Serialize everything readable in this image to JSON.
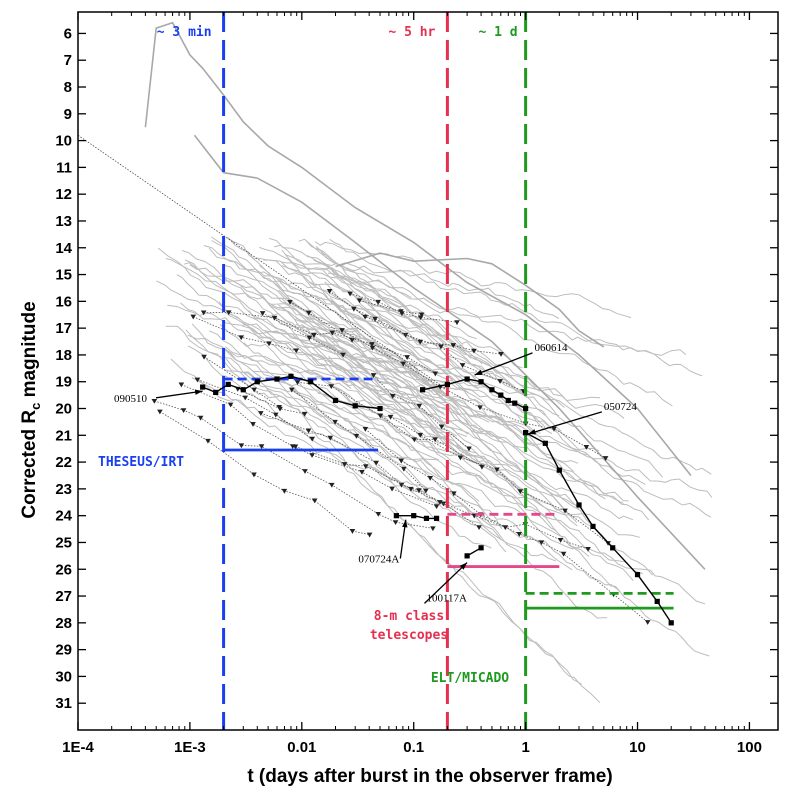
{
  "chart_data": {
    "type": "line",
    "x_scale": "log",
    "y_inverted": true,
    "xlabel": "t (days after burst in the observer frame)",
    "ylabel_main": "Corrected R",
    "ylabel_sub": "c",
    "ylabel_end": " magnitude",
    "xlim": [
      0.0001,
      180
    ],
    "ylim": [
      32,
      5.2
    ],
    "x_ticks": [
      {
        "v": 0.0001,
        "label": "1E-4"
      },
      {
        "v": 0.001,
        "label": "1E-3"
      },
      {
        "v": 0.01,
        "label": "0.01"
      },
      {
        "v": 0.1,
        "label": "0.1"
      },
      {
        "v": 1,
        "label": "1"
      },
      {
        "v": 10,
        "label": "10"
      },
      {
        "v": 100,
        "label": "100"
      }
    ],
    "y_ticks": [
      "6",
      "7",
      "8",
      "9",
      "10",
      "11",
      "12",
      "13",
      "14",
      "15",
      "16",
      "17",
      "18",
      "19",
      "20",
      "21",
      "22",
      "23",
      "24",
      "25",
      "26",
      "27",
      "28",
      "29",
      "30",
      "31"
    ],
    "epoch_lines": [
      {
        "x": 0.002,
        "label": "~ 3 min",
        "color": "#1a3ff0"
      },
      {
        "x": 0.2,
        "label": "~ 5 hr",
        "color": "#e5304f"
      },
      {
        "x": 1.0,
        "label": "~ 1 d",
        "color": "#1f9a1f"
      }
    ],
    "limits": [
      {
        "name": "THESEUS/IRT",
        "x0": 0.002,
        "x1": 0.048,
        "y": 21.55,
        "style": "solid",
        "color": "#1a3ff0"
      },
      {
        "name": "THESEUS/IRT",
        "x0": 0.002,
        "x1": 0.048,
        "y": 18.9,
        "style": "dashed",
        "color": "#1a3ff0"
      },
      {
        "name": "8-m class telescopes",
        "x0": 0.2,
        "x1": 2.0,
        "y": 25.9,
        "style": "solid",
        "color": "#e5488a"
      },
      {
        "name": "8-m class telescopes",
        "x0": 0.2,
        "x1": 2.0,
        "y": 23.95,
        "style": "dashed",
        "color": "#e5488a"
      },
      {
        "name": "ELT/MICADO",
        "x0": 1.0,
        "x1": 21,
        "y": 27.45,
        "style": "solid",
        "color": "#1f9a1f"
      },
      {
        "name": "ELT/MICADO",
        "x0": 1.0,
        "x1": 21,
        "y": 26.9,
        "style": "dashed",
        "color": "#1f9a1f"
      }
    ],
    "labels": {
      "theseus": "THESEUS/IRT",
      "eight_m_1": "8-m class",
      "eight_m_2": "telescopes",
      "elt": "ELT/MICADO"
    },
    "highlighted_grbs": [
      {
        "name": "090510",
        "points": [
          [
            0.0013,
            19.2
          ],
          [
            0.0017,
            19.4
          ],
          [
            0.0022,
            19.1
          ],
          [
            0.003,
            19.3
          ],
          [
            0.004,
            19.0
          ],
          [
            0.006,
            18.9
          ],
          [
            0.008,
            18.8
          ],
          [
            0.012,
            19.0
          ],
          [
            0.02,
            19.7
          ],
          [
            0.03,
            19.9
          ],
          [
            0.05,
            20.0
          ]
        ]
      },
      {
        "name": "060614",
        "points": [
          [
            0.12,
            19.3
          ],
          [
            0.2,
            19.1
          ],
          [
            0.3,
            18.9
          ],
          [
            0.4,
            19.0
          ],
          [
            0.5,
            19.3
          ],
          [
            0.6,
            19.5
          ],
          [
            0.7,
            19.7
          ],
          [
            0.8,
            19.8
          ],
          [
            1.0,
            20.0
          ]
        ]
      },
      {
        "name": "050724",
        "points": [
          [
            1.0,
            20.9
          ],
          [
            1.5,
            21.3
          ],
          [
            2.0,
            22.3
          ],
          [
            3.0,
            23.6
          ],
          [
            4.0,
            24.4
          ],
          [
            6.0,
            25.2
          ],
          [
            10,
            26.2
          ],
          [
            15,
            27.2
          ],
          [
            20,
            28.0
          ]
        ]
      },
      {
        "name": "070724A",
        "points": [
          [
            0.07,
            24.0
          ],
          [
            0.1,
            24.0
          ],
          [
            0.13,
            24.1
          ],
          [
            0.16,
            24.1
          ]
        ]
      },
      {
        "name": "100117A",
        "points": [
          [
            0.3,
            25.5
          ],
          [
            0.4,
            25.2
          ]
        ]
      }
    ],
    "grb_labels": [
      {
        "name": "090510",
        "tx": 0.00021,
        "ty": 19.75,
        "ax": 0.0013,
        "ay": 19.35
      },
      {
        "name": "060614",
        "tx": 1.2,
        "ty": 17.85,
        "ax": 0.35,
        "ay": 18.75
      },
      {
        "name": "050724",
        "tx": 5.0,
        "ty": 20.05,
        "ax": 1.05,
        "ay": 20.95
      },
      {
        "name": "070724A",
        "tx": 0.032,
        "ty": 25.75,
        "ax": 0.085,
        "ay": 24.15
      },
      {
        "name": "100117A",
        "tx": 0.13,
        "ty": 27.2,
        "ax": 0.3,
        "ay": 25.75
      }
    ]
  }
}
